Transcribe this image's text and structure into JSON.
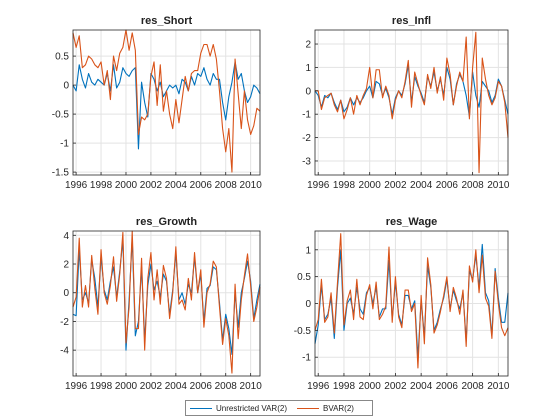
{
  "chart_data": [
    {
      "type": "line",
      "title": "res_Short",
      "xlim": [
        1995.75,
        2010.75
      ],
      "ylim": [
        -1.55,
        0.95
      ],
      "xticks": [
        1996,
        1998,
        2000,
        2002,
        2004,
        2006,
        2008,
        2010
      ],
      "yticks": [
        -1.5,
        -1,
        -0.5,
        0,
        0.5
      ],
      "x": [
        1995.75,
        1996.0,
        1996.25,
        1996.5,
        1996.75,
        1997.0,
        1997.25,
        1997.5,
        1997.75,
        1998.0,
        1998.25,
        1998.5,
        1998.75,
        1999.0,
        1999.25,
        1999.5,
        1999.75,
        2000.0,
        2000.25,
        2000.5,
        2000.75,
        2001.0,
        2001.25,
        2001.5,
        2001.75,
        2002.0,
        2002.25,
        2002.5,
        2002.75,
        2003.0,
        2003.25,
        2003.5,
        2003.75,
        2004.0,
        2004.25,
        2004.5,
        2004.75,
        2005.0,
        2005.25,
        2005.5,
        2005.75,
        2006.0,
        2006.25,
        2006.5,
        2006.75,
        2007.0,
        2007.25,
        2007.5,
        2007.75,
        2008.0,
        2008.25,
        2008.5,
        2008.75,
        2009.0,
        2009.25,
        2009.5,
        2009.75,
        2010.0,
        2010.25,
        2010.5,
        2010.75
      ],
      "series": [
        {
          "name": "Unrestricted VAR(2)",
          "color": "#0072BD",
          "values": [
            0.0,
            -0.1,
            0.35,
            0.1,
            -0.05,
            0.2,
            0.05,
            0.0,
            0.1,
            0.05,
            0.0,
            0.2,
            -0.1,
            0.35,
            -0.05,
            0.05,
            0.3,
            0.2,
            0.15,
            0.25,
            0.3,
            -1.1,
            0.05,
            -0.3,
            -0.55,
            0.2,
            0.1,
            -0.1,
            0.05,
            -0.2,
            -0.1,
            0.0,
            -0.05,
            0.0,
            -0.15,
            0.1,
            0.05,
            -0.1,
            0.15,
            0.0,
            0.2,
            0.15,
            0.3,
            0.1,
            0.0,
            0.2,
            0.1,
            0.1,
            -0.3,
            -0.6,
            -0.2,
            0.05,
            0.4,
            0.1,
            0.2,
            -0.1,
            -0.3,
            -0.2,
            0.0,
            -0.05,
            -0.15
          ]
        },
        {
          "name": "BVAR(2)",
          "color": "#D95319",
          "values": [
            0.9,
            0.65,
            0.85,
            0.3,
            0.35,
            0.5,
            0.45,
            0.35,
            0.3,
            0.4,
            0.0,
            0.25,
            -0.25,
            0.5,
            0.25,
            0.55,
            0.65,
            0.95,
            0.6,
            0.9,
            0.6,
            -0.85,
            -0.55,
            -0.6,
            -0.5,
            0.15,
            0.4,
            -0.35,
            0.35,
            -0.45,
            -0.1,
            -0.5,
            -0.75,
            -0.25,
            -0.65,
            -0.25,
            0.15,
            -0.1,
            0.2,
            0.25,
            0.25,
            0.55,
            0.7,
            0.7,
            0.5,
            0.7,
            0.45,
            -0.1,
            -0.75,
            -1.15,
            -0.75,
            -1.5,
            0.45,
            -0.15,
            -0.75,
            -0.1,
            -0.6,
            -0.85,
            -0.7,
            -0.4,
            -0.45
          ]
        }
      ]
    },
    {
      "type": "line",
      "title": "res_Infl",
      "xlim": [
        1995.75,
        2010.75
      ],
      "ylim": [
        -3.6,
        2.6
      ],
      "xticks": [
        1996,
        1998,
        2000,
        2002,
        2004,
        2006,
        2008,
        2010
      ],
      "yticks": [
        -3,
        -2,
        -1,
        0,
        1,
        2
      ],
      "x": [
        1995.75,
        1996.0,
        1996.25,
        1996.5,
        1996.75,
        1997.0,
        1997.25,
        1997.5,
        1997.75,
        1998.0,
        1998.25,
        1998.5,
        1998.75,
        1999.0,
        1999.25,
        1999.5,
        1999.75,
        2000.0,
        2000.25,
        2000.5,
        2000.75,
        2001.0,
        2001.25,
        2001.5,
        2001.75,
        2002.0,
        2002.25,
        2002.5,
        2002.75,
        2003.0,
        2003.25,
        2003.5,
        2003.75,
        2004.0,
        2004.25,
        2004.5,
        2004.75,
        2005.0,
        2005.25,
        2005.5,
        2005.75,
        2006.0,
        2006.25,
        2006.5,
        2006.75,
        2007.0,
        2007.25,
        2007.5,
        2007.75,
        2008.0,
        2008.25,
        2008.5,
        2008.75,
        2009.0,
        2009.25,
        2009.5,
        2009.75,
        2010.0,
        2010.25,
        2010.5,
        2010.75
      ],
      "series": [
        {
          "name": "Unrestricted VAR(2)",
          "color": "#0072BD",
          "values": [
            0.0,
            -0.2,
            -0.7,
            -0.2,
            -0.3,
            -0.1,
            -0.5,
            -0.8,
            -0.4,
            -0.9,
            -0.7,
            -0.3,
            -0.6,
            -0.3,
            -0.5,
            -0.3,
            0.0,
            0.2,
            -0.3,
            0.4,
            0.3,
            -0.2,
            0.1,
            -0.3,
            -1.0,
            -0.3,
            0.0,
            -0.2,
            0.3,
            1.1,
            -0.5,
            0.6,
            0.2,
            -0.1,
            -0.5,
            0.6,
            0.2,
            0.8,
            0.0,
            0.5,
            -0.2,
            1.0,
            0.5,
            -0.6,
            0.3,
            0.7,
            0.4,
            -0.2,
            -1.1,
            0.8,
            -0.2,
            -0.7,
            0.4,
            0.2,
            0.0,
            -0.5,
            -0.2,
            0.5,
            0.2,
            -0.4,
            -1.0
          ]
        },
        {
          "name": "BVAR(2)",
          "color": "#D95319",
          "values": [
            0.0,
            0.0,
            -0.8,
            -0.3,
            -0.2,
            -0.1,
            -0.6,
            -0.9,
            -0.4,
            -1.2,
            -0.8,
            -0.3,
            -1.0,
            -0.2,
            -0.6,
            -0.2,
            0.1,
            1.0,
            -0.3,
            0.9,
            0.9,
            -0.3,
            0.2,
            -0.2,
            -1.2,
            -0.4,
            0.0,
            -0.3,
            0.4,
            1.3,
            -0.7,
            0.8,
            0.3,
            -0.2,
            -0.6,
            0.7,
            0.1,
            1.0,
            -0.1,
            0.6,
            -0.4,
            1.4,
            0.7,
            -0.6,
            0.2,
            0.8,
            0.4,
            2.3,
            -1.2,
            1.0,
            2.5,
            -3.5,
            1.4,
            0.5,
            -0.2,
            -0.6,
            -0.3,
            0.4,
            0.2,
            -0.5,
            -2.0
          ]
        }
      ]
    },
    {
      "type": "line",
      "title": "res_Growth",
      "xlim": [
        1995.75,
        2010.75
      ],
      "ylim": [
        -5.8,
        4.3
      ],
      "xticks": [
        1996,
        1998,
        2000,
        2002,
        2004,
        2006,
        2008,
        2010
      ],
      "yticks": [
        -4,
        -2,
        0,
        2,
        4
      ],
      "x": [
        1995.75,
        1996.0,
        1996.25,
        1996.5,
        1996.75,
        1997.0,
        1997.25,
        1997.5,
        1997.75,
        1998.0,
        1998.25,
        1998.5,
        1998.75,
        1999.0,
        1999.25,
        1999.5,
        1999.75,
        2000.0,
        2000.25,
        2000.5,
        2000.75,
        2001.0,
        2001.25,
        2001.5,
        2001.75,
        2002.0,
        2002.25,
        2002.5,
        2002.75,
        2003.0,
        2003.25,
        2003.5,
        2003.75,
        2004.0,
        2004.25,
        2004.5,
        2004.75,
        2005.0,
        2005.25,
        2005.5,
        2005.75,
        2006.0,
        2006.25,
        2006.5,
        2006.75,
        2007.0,
        2007.25,
        2007.5,
        2007.75,
        2008.0,
        2008.25,
        2008.5,
        2008.75,
        2009.0,
        2009.25,
        2009.5,
        2009.75,
        2010.0,
        2010.25,
        2010.5,
        2010.75
      ],
      "series": [
        {
          "name": "Unrestricted VAR(2)",
          "color": "#0072BD",
          "values": [
            -1.5,
            -1.6,
            3.0,
            -0.5,
            0.0,
            -0.7,
            2.3,
            1.0,
            -1.0,
            2.5,
            0.2,
            -0.5,
            0.8,
            1.8,
            -0.3,
            1.5,
            3.7,
            -4.0,
            -0.5,
            3.8,
            -3.0,
            -2.0,
            1.8,
            -3.3,
            0.5,
            2.0,
            0.2,
            0.8,
            -0.3,
            1.3,
            0.8,
            -1.5,
            0.2,
            2.8,
            -0.5,
            0.0,
            -0.8,
            0.6,
            0.0,
            2.5,
            0.0,
            1.3,
            -2.0,
            0.3,
            0.5,
            1.8,
            1.6,
            -0.7,
            -3.3,
            -1.5,
            -2.5,
            -4.3,
            0.0,
            -2.4,
            0.0,
            1.0,
            2.2,
            0.8,
            -1.8,
            -0.5,
            0.6
          ]
        },
        {
          "name": "BVAR(2)",
          "color": "#D95319",
          "values": [
            -1.0,
            -0.3,
            3.8,
            -1.0,
            0.5,
            -1.0,
            2.6,
            0.3,
            -1.5,
            3.0,
            0.0,
            -0.8,
            0.5,
            2.5,
            -0.6,
            1.3,
            4.2,
            -3.5,
            -1.0,
            4.3,
            -2.5,
            -2.5,
            2.4,
            -4.0,
            1.0,
            2.8,
            -0.5,
            1.6,
            -0.8,
            1.9,
            1.0,
            -1.8,
            0.0,
            3.2,
            -0.8,
            -0.5,
            -1.2,
            1.0,
            -0.5,
            2.8,
            0.0,
            1.6,
            -2.4,
            0.0,
            0.6,
            2.2,
            1.8,
            -1.0,
            -3.6,
            -1.8,
            -3.0,
            -5.6,
            0.6,
            -3.2,
            -0.5,
            1.2,
            2.7,
            0.5,
            -2.0,
            -1.0,
            0.4
          ]
        }
      ]
    },
    {
      "type": "line",
      "title": "res_Wage",
      "xlim": [
        1995.75,
        2010.75
      ],
      "ylim": [
        -1.35,
        1.35
      ],
      "xticks": [
        1996,
        1998,
        2000,
        2002,
        2004,
        2006,
        2008,
        2010
      ],
      "yticks": [
        -1,
        -0.5,
        0,
        0.5,
        1
      ],
      "x": [
        1995.75,
        1996.0,
        1996.25,
        1996.5,
        1996.75,
        1997.0,
        1997.25,
        1997.5,
        1997.75,
        1998.0,
        1998.25,
        1998.5,
        1998.75,
        1999.0,
        1999.25,
        1999.5,
        1999.75,
        2000.0,
        2000.25,
        2000.5,
        2000.75,
        2001.0,
        2001.25,
        2001.5,
        2001.75,
        2002.0,
        2002.25,
        2002.5,
        2002.75,
        2003.0,
        2003.25,
        2003.5,
        2003.75,
        2004.0,
        2004.25,
        2004.5,
        2004.75,
        2005.0,
        2005.25,
        2005.5,
        2005.75,
        2006.0,
        2006.25,
        2006.5,
        2006.75,
        2007.0,
        2007.25,
        2007.5,
        2007.75,
        2008.0,
        2008.25,
        2008.5,
        2008.75,
        2009.0,
        2009.25,
        2009.5,
        2009.75,
        2010.0,
        2010.25,
        2010.5,
        2010.75
      ],
      "series": [
        {
          "name": "Unrestricted VAR(2)",
          "color": "#0072BD",
          "values": [
            -0.75,
            -0.4,
            0.35,
            -0.3,
            -0.2,
            0.1,
            -0.65,
            0.3,
            1.0,
            -0.5,
            0.0,
            0.1,
            -0.2,
            0.3,
            -0.1,
            -0.2,
            0.2,
            0.3,
            0.0,
            0.3,
            -0.25,
            -0.1,
            -0.1,
            0.8,
            -0.3,
            0.4,
            -0.2,
            -0.4,
            0.15,
            0.15,
            -0.1,
            0.05,
            -1.0,
            0.05,
            -0.6,
            0.7,
            0.3,
            -0.5,
            -0.35,
            -0.1,
            0.1,
            0.45,
            -0.1,
            0.25,
            0.05,
            -0.1,
            0.2,
            -0.7,
            0.6,
            0.45,
            0.9,
            0.3,
            1.1,
            0.2,
            0.05,
            -0.6,
            0.65,
            0.1,
            -0.35,
            -0.35,
            0.2
          ]
        },
        {
          "name": "BVAR(2)",
          "color": "#D95319",
          "values": [
            -0.5,
            -0.3,
            0.45,
            -0.35,
            -0.25,
            0.2,
            -0.55,
            0.4,
            1.3,
            -0.4,
            0.05,
            0.25,
            -0.3,
            0.45,
            -0.25,
            -0.3,
            0.15,
            0.35,
            -0.1,
            0.4,
            -0.3,
            -0.2,
            -0.05,
            1.05,
            -0.35,
            0.5,
            -0.25,
            -0.45,
            0.25,
            0.25,
            -0.15,
            0.0,
            -1.2,
            0.15,
            -0.75,
            0.85,
            0.35,
            -0.55,
            -0.4,
            -0.15,
            0.15,
            0.5,
            -0.15,
            0.3,
            0.1,
            -0.2,
            0.25,
            -0.8,
            0.7,
            0.4,
            1.0,
            0.2,
            0.9,
            0.1,
            -0.05,
            -0.65,
            0.6,
            0.0,
            -0.45,
            -0.6,
            -0.45
          ]
        }
      ]
    }
  ],
  "legend": {
    "items": [
      {
        "label": "Unrestricted VAR(2)",
        "color": "#0072BD"
      },
      {
        "label": "BVAR(2)",
        "color": "#D95319"
      }
    ]
  }
}
